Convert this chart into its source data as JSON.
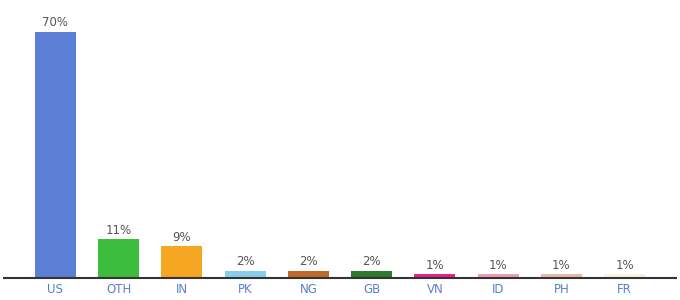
{
  "categories": [
    "US",
    "OTH",
    "IN",
    "PK",
    "NG",
    "GB",
    "VN",
    "ID",
    "PH",
    "FR"
  ],
  "values": [
    70,
    11,
    9,
    2,
    2,
    2,
    1,
    1,
    1,
    1
  ],
  "bar_colors": [
    "#5b7fd4",
    "#3dbd3d",
    "#f5a623",
    "#87ceeb",
    "#c0692a",
    "#2d7a2d",
    "#e91e8c",
    "#e8a0b0",
    "#e8b8a8",
    "#f5f5dc"
  ],
  "bar_labels": [
    "70%",
    "11%",
    "9%",
    "2%",
    "2%",
    "2%",
    "1%",
    "1%",
    "1%",
    "1%"
  ],
  "ylim": [
    0,
    78
  ],
  "label_fontsize": 8.5,
  "tick_fontsize": 8.5,
  "tick_color": "#5b7fcc",
  "background_color": "#ffffff"
}
